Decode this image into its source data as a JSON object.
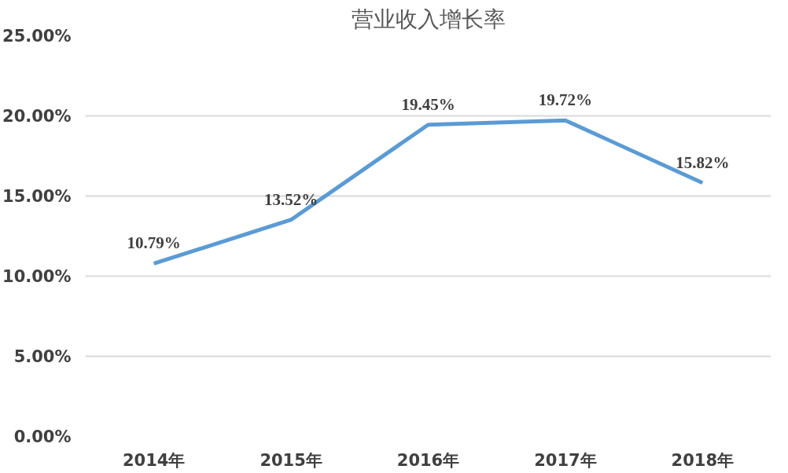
{
  "chart_data": {
    "type": "line",
    "title": "营业收入增长率",
    "categories": [
      "2014年",
      "2015年",
      "2016年",
      "2017年",
      "2018年"
    ],
    "series": [
      {
        "color": "#5b9bd5",
        "values": [
          10.79,
          13.52,
          19.45,
          19.72,
          15.82
        ],
        "value_labels": [
          "10.79%",
          "13.52%",
          "19.45%",
          "19.72%",
          "15.82%"
        ]
      }
    ],
    "ylim": [
      0,
      25
    ],
    "yticks": [
      {
        "value": 0,
        "label": "0.00%"
      },
      {
        "value": 5,
        "label": "5.00%"
      },
      {
        "value": 10,
        "label": "10.00%"
      },
      {
        "value": 15,
        "label": "15.00%"
      },
      {
        "value": 20,
        "label": "20.00%"
      },
      {
        "value": 25,
        "label": "25.00%"
      }
    ],
    "grid": "y",
    "marker": "none",
    "line_style": "solid"
  }
}
